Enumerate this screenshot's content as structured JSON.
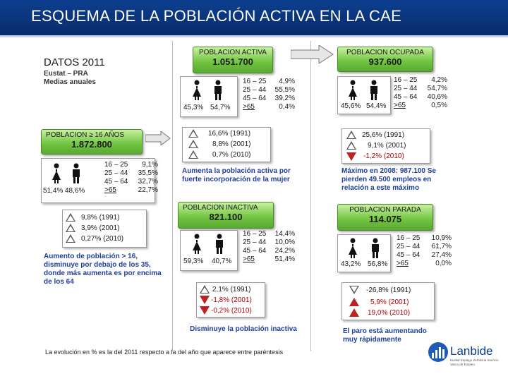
{
  "header": {
    "title": "ESQUEMA DE LA POBLACIÓN ACTIVA EN LA CAE"
  },
  "datos": {
    "title": "DATOS 2011",
    "source": "Eustat – PRA",
    "subtitle": "Medias anuales"
  },
  "poblacion16": {
    "label": "POBLACION ≥ 16 AÑOS",
    "value": "1.872.800",
    "female_pct": "51,4%",
    "male_pct": "48,6%",
    "ages": [
      {
        "range": "16 – 25",
        "pct": "9,1%"
      },
      {
        "range": "25 – 44",
        "pct": "35,5%"
      },
      {
        "range": "45 – 64",
        "pct": "32,7%"
      },
      {
        "range": ">65",
        "pct": "22,7%"
      }
    ],
    "trend": [
      "9,8%  (1991)",
      "3,9%  (2001)",
      "0,27%  (2010)"
    ],
    "note": "Aumento de población > 16, disminuye por debajo de los 35, donde más aumenta es por encima de los 64"
  },
  "activa": {
    "label": "POBLACION ACTIVA",
    "value": "1.051.700",
    "female_pct": "45,3%",
    "male_pct": "54,7%",
    "ages": [
      {
        "range": "16 – 25",
        "pct": "4,9%"
      },
      {
        "range": "25 – 44",
        "pct": "55,5%"
      },
      {
        "range": "45 – 64",
        "pct": "39,2%"
      },
      {
        "range": ">65",
        "pct": "0,4%"
      }
    ],
    "trend": [
      "16,6% (1991)",
      "8,8% (2001)",
      "0,7% (2010)"
    ],
    "note": "Aumenta la población activa por fuerte incorporación de la mujer"
  },
  "ocupada": {
    "label": "POBLACION OCUPADA",
    "value": "937.600",
    "female_pct": "45,6%",
    "male_pct": "54,4%",
    "ages": [
      {
        "range": "16 – 25",
        "pct": "4,2%"
      },
      {
        "range": "25 – 44",
        "pct": "54,7%"
      },
      {
        "range": "45 – 64",
        "pct": "40,6%"
      },
      {
        "range": ">65",
        "pct": "0,5%"
      }
    ],
    "trend": [
      "25,6% (1991)",
      "9,1% (2001)",
      "-1,2% (2010)"
    ],
    "note": "Máximo en 2008: 987.100 Se pierden 49.500 empleos en relación a este máximo"
  },
  "inactiva": {
    "label": "POBLACION INACTIVA",
    "value": "821.100",
    "female_pct": "59,3%",
    "male_pct": "40,7%",
    "ages": [
      {
        "range": "16 – 25",
        "pct": "14,4%"
      },
      {
        "range": "25 – 44",
        "pct": "10,0%"
      },
      {
        "range": "45 – 64",
        "pct": "24,2%"
      },
      {
        "range": ">65",
        "pct": "51,4%"
      }
    ],
    "trend": [
      "2,1% (1991)",
      "-1,8% (2001)",
      "-0,2% (2010)"
    ],
    "note": "Disminuye la población inactiva"
  },
  "parada": {
    "label": "POBLACION PARADA",
    "value": "114.075",
    "female_pct": "43,2%",
    "male_pct": "56,8%",
    "ages": [
      {
        "range": "16 – 25",
        "pct": "10,9%"
      },
      {
        "range": "25 – 44",
        "pct": "61,7%"
      },
      {
        "range": "45 – 64",
        "pct": "27,4%"
      },
      {
        "range": ">65",
        "pct": "0,0%"
      }
    ],
    "trend": [
      "-26,8% (1991)",
      "5,9% (2001)",
      "19,0% (2010)"
    ],
    "note": "El paro está aumentando muy rápidamente"
  },
  "footer": {
    "note": "La evolución en % es la del 2011 respecto a la del año que aparece entre paréntesis"
  },
  "logo": {
    "name": "Lanbide",
    "tagline": "Euskal Enplegu Zerbitzua Servicio Vasco de Empleo"
  },
  "colors": {
    "header": "#0d3f8f",
    "green": "#6fc43f",
    "blue_text": "#1f3f9b",
    "red": "#b22222"
  }
}
